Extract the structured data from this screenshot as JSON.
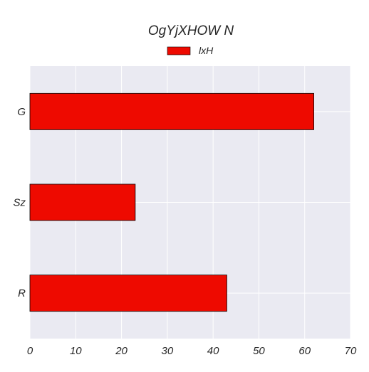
{
  "chart_data": {
    "type": "bar",
    "orientation": "horizontal",
    "title": "OgYjXHOW N",
    "xlabel": "",
    "ylabel": "",
    "categories": [
      "G",
      "Sz",
      "R"
    ],
    "series": [
      {
        "name": "lxH",
        "values": [
          62,
          23,
          43
        ],
        "color": "#ee0a00"
      }
    ],
    "xlim": [
      0,
      70
    ],
    "xticks": [
      "0",
      "10",
      "20",
      "30",
      "40",
      "50",
      "60",
      "70"
    ],
    "grid": true,
    "legend": "top-center",
    "colors": {
      "plot_background": "#eaeaf2",
      "grid": "#ffffff",
      "bar_edge": "#000000"
    }
  }
}
